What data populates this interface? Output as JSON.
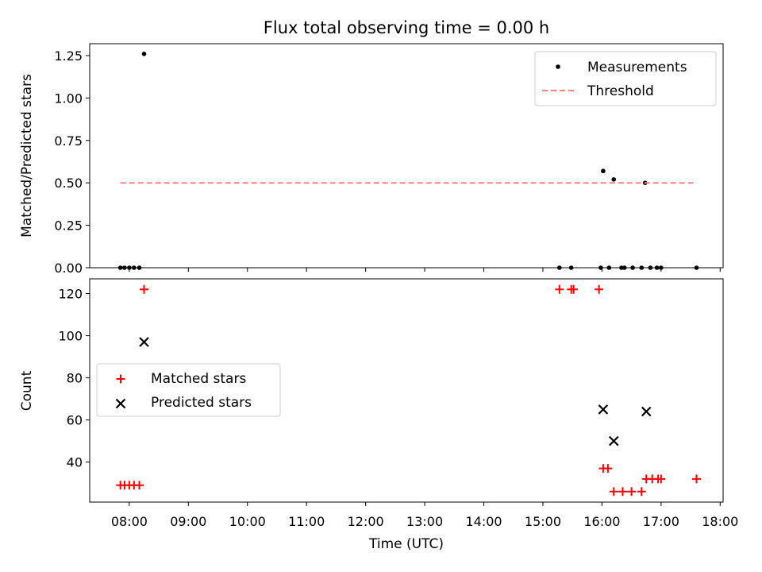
{
  "chart_data": {
    "title": "Flux total observing time = 0.00 h",
    "xlabel": "Time (UTC)",
    "x_ticks": [
      "08:00",
      "09:00",
      "10:00",
      "11:00",
      "12:00",
      "13:00",
      "14:00",
      "15:00",
      "16:00",
      "17:00",
      "18:00"
    ],
    "x_range_hours": [
      7.33,
      18.05
    ],
    "panels": [
      {
        "type": "scatter",
        "ylabel": "Matched/Predicted stars",
        "ylim": [
          0.0,
          1.32
        ],
        "y_ticks": [
          "0.00",
          "0.25",
          "0.50",
          "0.75",
          "1.00",
          "1.25"
        ],
        "legend_position": "top-right",
        "series": [
          {
            "name": "Measurements",
            "marker": "dot",
            "color": "#000000",
            "x_hours": [
              7.85,
              7.92,
              8.0,
              8.08,
              8.17,
              8.25,
              15.28,
              15.48,
              15.98,
              16.02,
              16.12,
              16.2,
              16.33,
              16.38,
              16.52,
              16.67,
              16.73,
              16.82,
              16.93,
              17.0,
              17.6
            ],
            "y": [
              0.0,
              0.0,
              0.0,
              0.0,
              0.0,
              1.26,
              0.0,
              0.0,
              0.0,
              0.57,
              0.0,
              0.52,
              0.0,
              0.0,
              0.0,
              0.0,
              0.5,
              0.0,
              0.0,
              0.0,
              0.0
            ]
          },
          {
            "name": "Threshold",
            "style": "dashed",
            "color": "#ff8080",
            "x_hours": [
              7.85,
              17.6
            ],
            "y": [
              0.5,
              0.5
            ]
          }
        ]
      },
      {
        "type": "scatter",
        "ylabel": "Count",
        "ylim": [
          21,
          127
        ],
        "y_ticks": [
          "40",
          "60",
          "80",
          "100",
          "120"
        ],
        "legend_position": "center-left",
        "series": [
          {
            "name": "Matched stars",
            "marker": "plus",
            "color": "#ff0000",
            "x_hours": [
              7.85,
              7.92,
              8.0,
              8.08,
              8.17,
              8.25,
              15.28,
              15.48,
              15.52,
              15.95,
              16.02,
              16.1,
              16.2,
              16.35,
              16.5,
              16.67,
              16.75,
              16.85,
              16.95,
              17.0,
              17.6
            ],
            "y": [
              29,
              29,
              29,
              29,
              29,
              122,
              122,
              122,
              122,
              122,
              37,
              37,
              26,
              26,
              26,
              26,
              32,
              32,
              32,
              32,
              32
            ]
          },
          {
            "name": "Predicted stars",
            "marker": "x",
            "color": "#000000",
            "x_hours": [
              8.25,
              16.02,
              16.2,
              16.75
            ],
            "y": [
              97,
              65,
              50,
              64
            ]
          }
        ]
      }
    ]
  }
}
